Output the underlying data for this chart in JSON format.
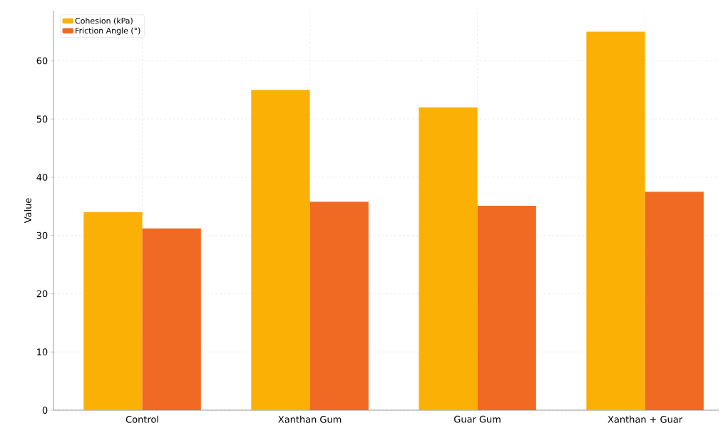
{
  "chart_data": {
    "type": "bar",
    "ylabel": "Value",
    "categories": [
      "Control",
      "Xanthan Gum",
      "Guar Gum",
      "Xanthan + Guar"
    ],
    "series": [
      {
        "name": "Cohesion (kPa)",
        "color": "#fbb006",
        "values": [
          34,
          55,
          52,
          65
        ]
      },
      {
        "name": "Friction Angle (°)",
        "color": "#f06a24",
        "values": [
          31.2,
          35.8,
          35.1,
          37.5
        ]
      }
    ],
    "ylim": [
      0,
      68.6
    ],
    "yticks": [
      0,
      10,
      20,
      30,
      40,
      50,
      60
    ],
    "grid": true,
    "legend": "top left"
  }
}
